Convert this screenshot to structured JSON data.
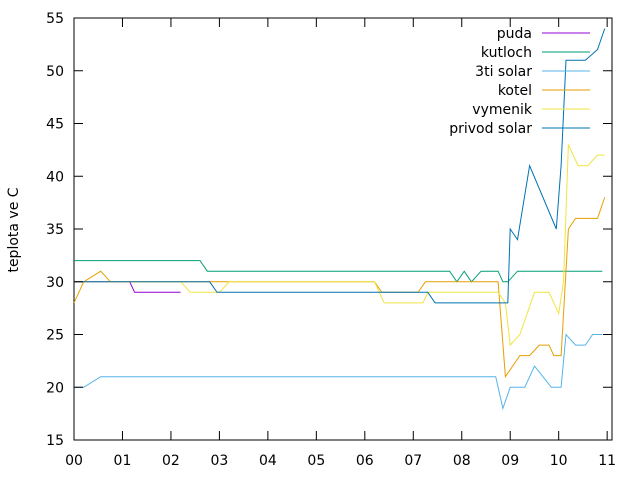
{
  "chart_data": {
    "type": "line",
    "title": "",
    "xlabel": "",
    "ylabel": "teplota ve C",
    "xlim": [
      0,
      11.1
    ],
    "ylim": [
      15,
      55
    ],
    "xticks": [
      {
        "value": 0,
        "label": "00"
      },
      {
        "value": 1,
        "label": "01"
      },
      {
        "value": 2,
        "label": "02"
      },
      {
        "value": 3,
        "label": "03"
      },
      {
        "value": 4,
        "label": "04"
      },
      {
        "value": 5,
        "label": "05"
      },
      {
        "value": 6,
        "label": "06"
      },
      {
        "value": 7,
        "label": "07"
      },
      {
        "value": 8,
        "label": "08"
      },
      {
        "value": 9,
        "label": "09"
      },
      {
        "value": 10,
        "label": "10"
      },
      {
        "value": 11,
        "label": "11"
      }
    ],
    "yticks": [
      15,
      20,
      25,
      30,
      35,
      40,
      45,
      50,
      55
    ],
    "grid": false,
    "legend_position": "top-right",
    "series": [
      {
        "name": "puda",
        "color": "#9400d3",
        "points": [
          [
            0,
            30
          ],
          [
            1.15,
            30
          ],
          [
            1.25,
            29
          ],
          [
            2.2,
            29
          ]
        ]
      },
      {
        "name": "kutloch",
        "color": "#009e73",
        "points": [
          [
            0,
            32
          ],
          [
            2.6,
            32
          ],
          [
            2.75,
            31
          ],
          [
            7.75,
            31
          ],
          [
            7.9,
            30
          ],
          [
            8.05,
            31
          ],
          [
            8.2,
            30
          ],
          [
            8.4,
            31
          ],
          [
            8.75,
            31
          ],
          [
            8.85,
            30
          ],
          [
            8.95,
            30
          ],
          [
            9.15,
            31
          ],
          [
            10.9,
            31
          ]
        ]
      },
      {
        "name": "3ti solar",
        "color": "#56b4e9",
        "points": [
          [
            0,
            20
          ],
          [
            0.2,
            20
          ],
          [
            0.55,
            21
          ],
          [
            8.7,
            21
          ],
          [
            8.85,
            18
          ],
          [
            9.0,
            20
          ],
          [
            9.3,
            20
          ],
          [
            9.5,
            22
          ],
          [
            9.85,
            20
          ],
          [
            10.05,
            20
          ],
          [
            10.15,
            25
          ],
          [
            10.35,
            24
          ],
          [
            10.55,
            24
          ],
          [
            10.7,
            25
          ],
          [
            10.9,
            25
          ]
        ]
      },
      {
        "name": "kotel",
        "color": "#e69f00",
        "points": [
          [
            0,
            28
          ],
          [
            0.2,
            30
          ],
          [
            0.55,
            31
          ],
          [
            0.75,
            30
          ],
          [
            6.2,
            30
          ],
          [
            6.35,
            29
          ],
          [
            7.1,
            29
          ],
          [
            7.25,
            30
          ],
          [
            8.75,
            30
          ],
          [
            8.9,
            21
          ],
          [
            9.2,
            23
          ],
          [
            9.4,
            23
          ],
          [
            9.6,
            24
          ],
          [
            9.8,
            24
          ],
          [
            9.9,
            23
          ],
          [
            10.05,
            23
          ],
          [
            10.2,
            35
          ],
          [
            10.35,
            36
          ],
          [
            10.8,
            36
          ],
          [
            10.95,
            38
          ]
        ]
      },
      {
        "name": "vymenik",
        "color": "#f0e442",
        "points": [
          [
            0,
            30
          ],
          [
            2.2,
            30
          ],
          [
            2.4,
            29
          ],
          [
            3.0,
            29
          ],
          [
            3.2,
            30
          ],
          [
            6.2,
            30
          ],
          [
            6.4,
            28
          ],
          [
            7.2,
            28
          ],
          [
            7.3,
            29
          ],
          [
            8.75,
            29
          ],
          [
            8.9,
            28
          ],
          [
            9.0,
            24
          ],
          [
            9.2,
            25
          ],
          [
            9.5,
            29
          ],
          [
            9.8,
            29
          ],
          [
            10.0,
            27
          ],
          [
            10.1,
            30
          ],
          [
            10.2,
            43
          ],
          [
            10.4,
            41
          ],
          [
            10.6,
            41
          ],
          [
            10.8,
            42
          ],
          [
            10.95,
            42
          ]
        ]
      },
      {
        "name": "privod solar",
        "color": "#0072b2",
        "points": [
          [
            0,
            30
          ],
          [
            2.8,
            30
          ],
          [
            2.95,
            29
          ],
          [
            7.3,
            29
          ],
          [
            7.45,
            28
          ],
          [
            8.95,
            28
          ],
          [
            9.0,
            35
          ],
          [
            9.15,
            34
          ],
          [
            9.4,
            41
          ],
          [
            9.95,
            35
          ],
          [
            10.05,
            41
          ],
          [
            10.15,
            51
          ],
          [
            10.55,
            51
          ],
          [
            10.8,
            52
          ],
          [
            10.95,
            54
          ]
        ]
      }
    ]
  }
}
